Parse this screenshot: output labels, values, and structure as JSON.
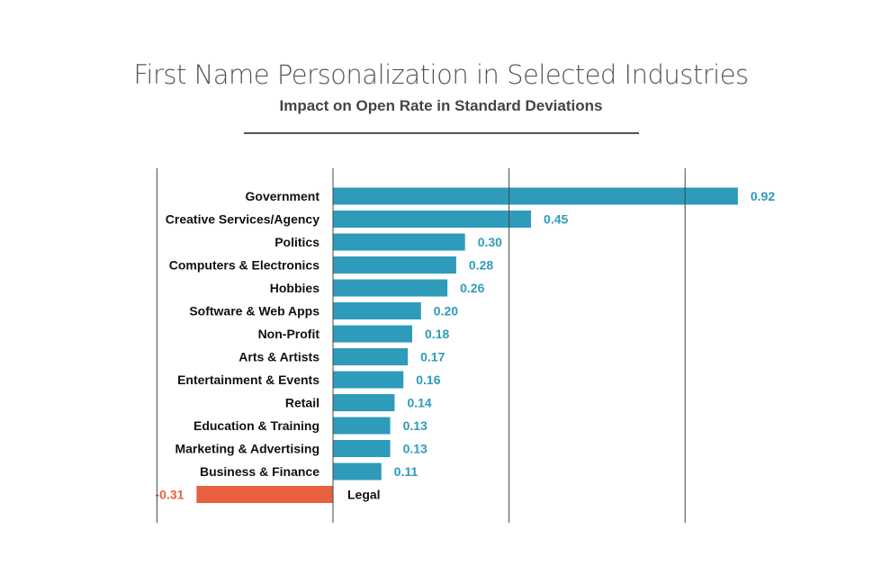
{
  "chart_data": {
    "type": "bar",
    "orientation": "horizontal",
    "title": "First Name Personalization in Selected Industries",
    "subtitle": "Impact on Open Rate in Standard Deviations",
    "xlabel": "",
    "ylabel": "",
    "xlim": [
      -0.4,
      0.92
    ],
    "gridlines": [
      -0.4,
      0,
      0.4,
      0.8
    ],
    "categories": [
      "Government",
      "Creative Services/Agency",
      "Politics",
      "Computers & Electronics",
      "Hobbies",
      "Software & Web Apps",
      "Non-Profit",
      "Arts & Artists",
      "Entertainment & Events",
      "Retail",
      "Education & Training",
      "Marketing & Advertising",
      "Business & Finance",
      "Legal"
    ],
    "values": [
      0.92,
      0.45,
      0.3,
      0.28,
      0.26,
      0.2,
      0.18,
      0.17,
      0.16,
      0.14,
      0.13,
      0.13,
      0.11,
      -0.31
    ],
    "value_labels": [
      "0.92",
      "0.45",
      "0.30",
      "0.28",
      "0.26",
      "0.20",
      "0.18",
      "0.17",
      "0.16",
      "0.14",
      "0.13",
      "0.13",
      "0.11",
      "-0.31"
    ],
    "colors": {
      "positive": "#2e9bba",
      "negative": "#e8603f"
    }
  }
}
